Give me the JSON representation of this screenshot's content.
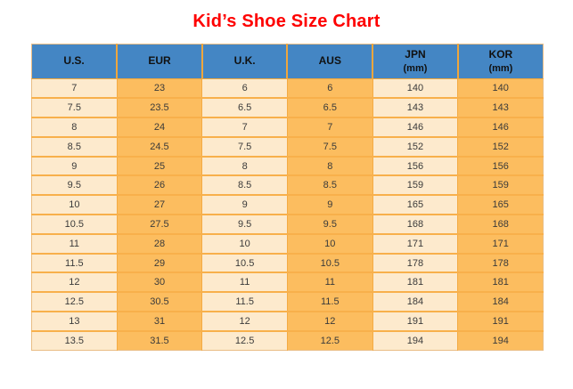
{
  "title": "Kid’s Shoe Size Chart",
  "colors": {
    "title_red": "#fe0000",
    "header_blue": "#4486c4",
    "column_light": "#fdeacd",
    "column_orange": "#fcbd5f",
    "grid_orange": "#f3ab45",
    "cell_text": "#3a3a3a"
  },
  "table": {
    "columns": [
      {
        "label": "U.S.",
        "sub": ""
      },
      {
        "label": "EUR",
        "sub": ""
      },
      {
        "label": "U.K.",
        "sub": ""
      },
      {
        "label": "AUS",
        "sub": ""
      },
      {
        "label": "JPN",
        "sub": "(mm)"
      },
      {
        "label": "KOR",
        "sub": "(mm)"
      }
    ],
    "rows": [
      [
        "7",
        "23",
        "6",
        "6",
        "140",
        "140"
      ],
      [
        "7.5",
        "23.5",
        "6.5",
        "6.5",
        "143",
        "143"
      ],
      [
        "8",
        "24",
        "7",
        "7",
        "146",
        "146"
      ],
      [
        "8.5",
        "24.5",
        "7.5",
        "7.5",
        "152",
        "152"
      ],
      [
        "9",
        "25",
        "8",
        "8",
        "156",
        "156"
      ],
      [
        "9.5",
        "26",
        "8.5",
        "8.5",
        "159",
        "159"
      ],
      [
        "10",
        "27",
        "9",
        "9",
        "165",
        "165"
      ],
      [
        "10.5",
        "27.5",
        "9.5",
        "9.5",
        "168",
        "168"
      ],
      [
        "11",
        "28",
        "10",
        "10",
        "171",
        "171"
      ],
      [
        "11.5",
        "29",
        "10.5",
        "10.5",
        "178",
        "178"
      ],
      [
        "12",
        "30",
        "11",
        "11",
        "181",
        "181"
      ],
      [
        "12.5",
        "30.5",
        "11.5",
        "11.5",
        "184",
        "184"
      ],
      [
        "13",
        "31",
        "12",
        "12",
        "191",
        "191"
      ],
      [
        "13.5",
        "31.5",
        "12.5",
        "12.5",
        "194",
        "194"
      ]
    ]
  },
  "chart_data": {
    "type": "table",
    "title": "Kid's Shoe Size Chart",
    "columns": [
      "U.S.",
      "EUR",
      "U.K.",
      "AUS",
      "JPN (mm)",
      "KOR (mm)"
    ],
    "rows": [
      [
        7,
        23,
        6,
        6,
        140,
        140
      ],
      [
        7.5,
        23.5,
        6.5,
        6.5,
        143,
        143
      ],
      [
        8,
        24,
        7,
        7,
        146,
        146
      ],
      [
        8.5,
        24.5,
        7.5,
        7.5,
        152,
        152
      ],
      [
        9,
        25,
        8,
        8,
        156,
        156
      ],
      [
        9.5,
        26,
        8.5,
        8.5,
        159,
        159
      ],
      [
        10,
        27,
        9,
        9,
        165,
        165
      ],
      [
        10.5,
        27.5,
        9.5,
        9.5,
        168,
        168
      ],
      [
        11,
        28,
        10,
        10,
        171,
        171
      ],
      [
        11.5,
        29,
        10.5,
        10.5,
        178,
        178
      ],
      [
        12,
        30,
        11,
        11,
        181,
        181
      ],
      [
        12.5,
        30.5,
        11.5,
        11.5,
        184,
        184
      ],
      [
        13,
        31,
        12,
        12,
        191,
        191
      ],
      [
        13.5,
        31.5,
        12.5,
        12.5,
        194,
        194
      ]
    ],
    "layout": {
      "column_striping": "alternating light/orange by column",
      "header_position": "top",
      "title_position": "top-center"
    }
  }
}
